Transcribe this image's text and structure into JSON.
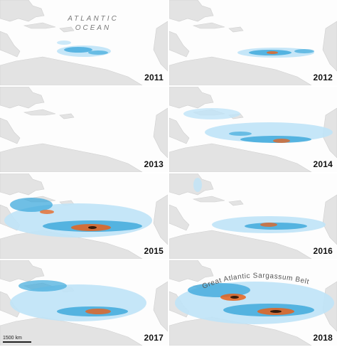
{
  "map": {
    "ocean_label_line1": "Atlantic",
    "ocean_label_line2": "Ocean",
    "belt_label": "Great Atlantic Sargassum Belt",
    "scale_label": "1500 km",
    "colors": {
      "land": "#e3e3e3",
      "land_edge": "#cfcfcf",
      "ocean": "#fdfdfd",
      "low_density": "#bfe3f7",
      "medium_density": "#3fa9dc",
      "high_density": "#e8621b",
      "very_high_density": "#1a0d05"
    }
  },
  "panels": [
    {
      "year": "2011",
      "intensity": 0.45
    },
    {
      "year": "2012",
      "intensity": 0.5
    },
    {
      "year": "2013",
      "intensity": 0.0
    },
    {
      "year": "2014",
      "intensity": 0.6
    },
    {
      "year": "2015",
      "intensity": 0.9
    },
    {
      "year": "2016",
      "intensity": 0.6
    },
    {
      "year": "2017",
      "intensity": 0.75
    },
    {
      "year": "2018",
      "intensity": 1.0
    }
  ]
}
